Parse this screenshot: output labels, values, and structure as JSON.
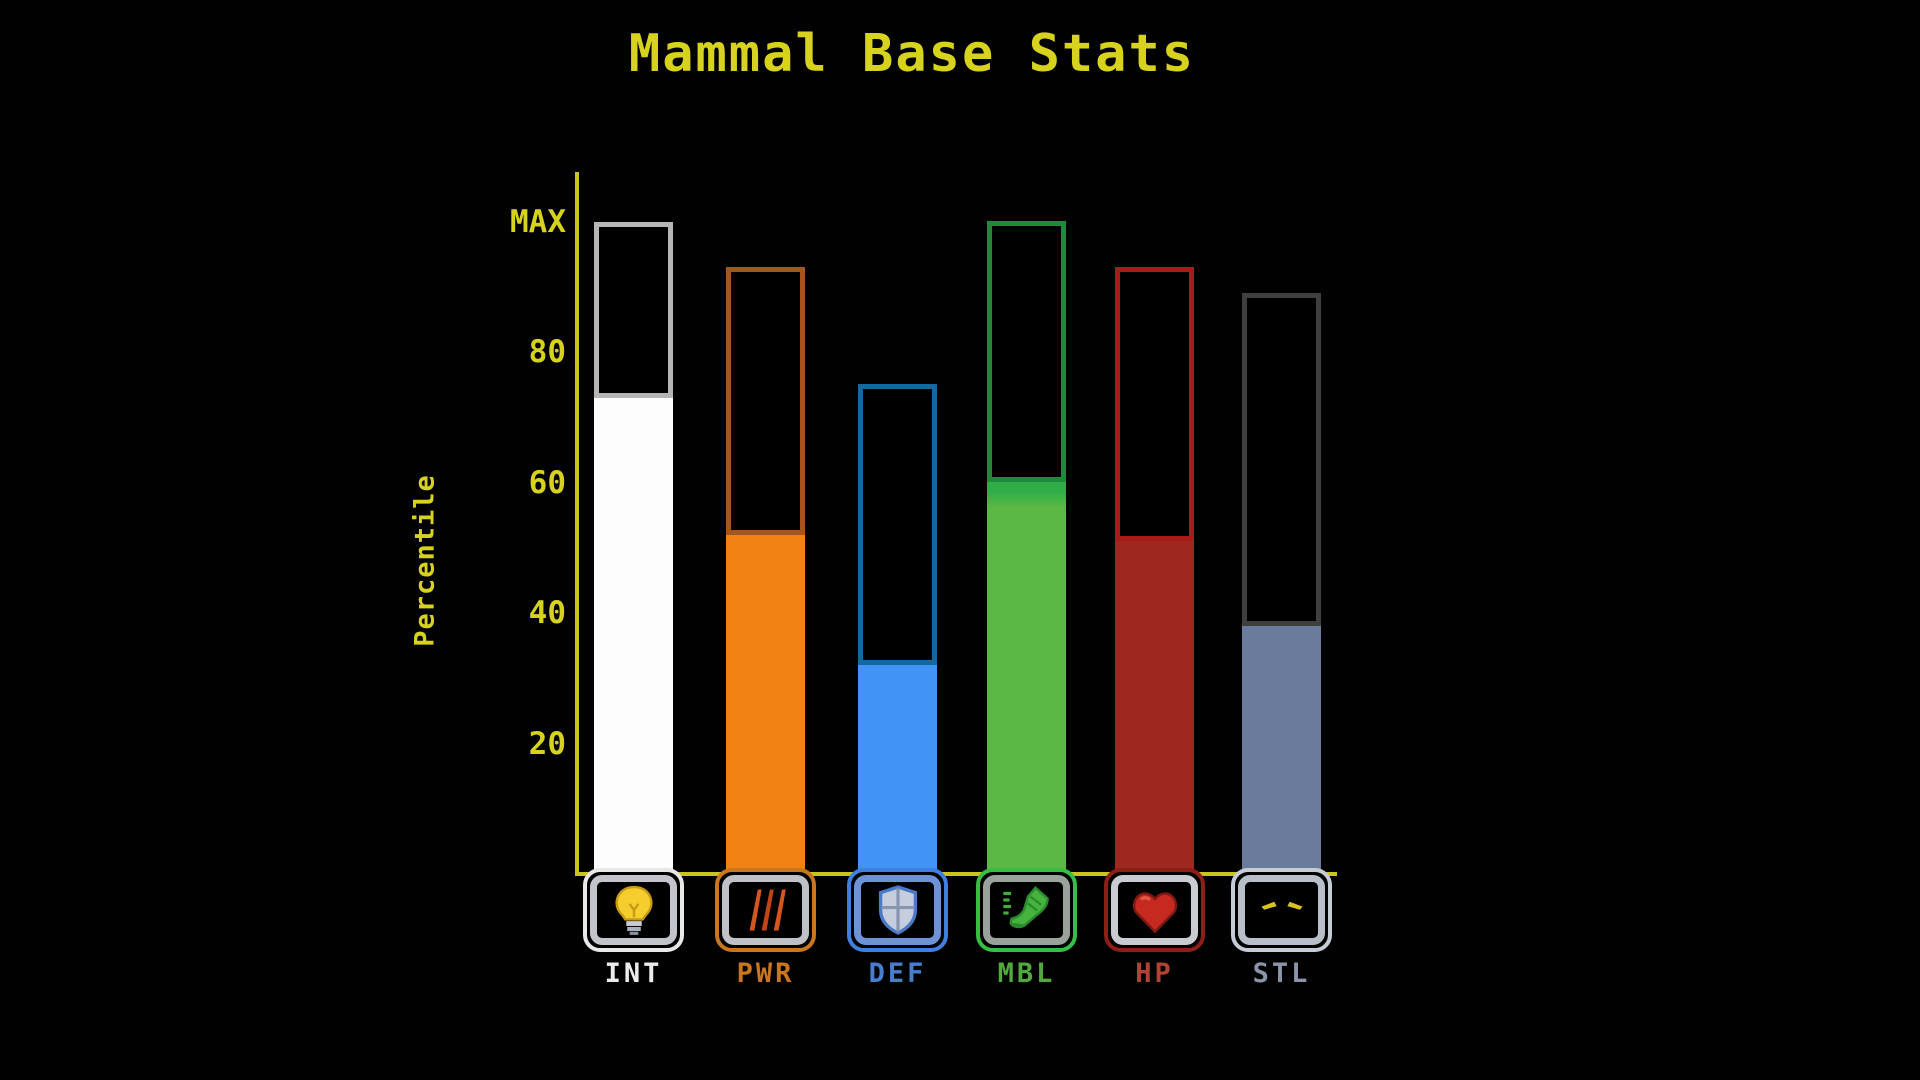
{
  "title": "Mammal Base Stats",
  "colors": {
    "title_yellow": "#d6d21d",
    "axis_yellow": "#c9c41e",
    "background": "#010101"
  },
  "chart_data": {
    "type": "bar",
    "title": "Mammal Base Stats",
    "ylabel": "Percentile",
    "ylim": [
      0,
      104
    ],
    "grid": false,
    "legend": "none",
    "yticks": [
      {
        "value": 20,
        "label": "20"
      },
      {
        "value": 40,
        "label": "40"
      },
      {
        "value": 60,
        "label": "60"
      },
      {
        "value": 80,
        "label": "80"
      },
      {
        "value": 100,
        "label": "MAX"
      }
    ],
    "categories": [
      "INT",
      "PWR",
      "DEF",
      "MBL",
      "HP",
      "STL"
    ],
    "series": [
      {
        "name": "current percentile",
        "values": [
          73,
          52,
          32,
          60,
          51,
          38
        ]
      },
      {
        "name": "max outline",
        "values": [
          100,
          93,
          75,
          100,
          93,
          89
        ]
      }
    ],
    "bars": [
      {
        "label": "INT",
        "value": 73,
        "max": 100,
        "fill_color": "#fdfdfd",
        "cap_color": "",
        "outline_color": "#b5b5b5",
        "rim_color": "#e8e8e8",
        "frame_color": "#c2c4ca",
        "label_color": "#ececec",
        "icon": "lightbulb-icon"
      },
      {
        "label": "PWR",
        "value": 52,
        "max": 93,
        "fill_color": "#f28214",
        "cap_color": "",
        "outline_color": "#a5561c",
        "rim_color": "#c8761f",
        "frame_color": "#bfc1c7",
        "label_color": "#c8761f",
        "icon": "claw-slashes-icon"
      },
      {
        "label": "DEF",
        "value": 32,
        "max": 75,
        "fill_color": "#4293f6",
        "cap_color": "",
        "outline_color": "#15689d",
        "rim_color": "#3e7fe0",
        "frame_color": "#6d93d6",
        "label_color": "#477fd0",
        "icon": "shield-icon"
      },
      {
        "label": "MBL",
        "value": 60,
        "max": 100,
        "fill_color": "#5cb845",
        "cap_color": "#2fae48",
        "outline_color": "#1f8b3a",
        "rim_color": "#35c045",
        "frame_color": "#9aa29c",
        "label_color": "#50a83e",
        "icon": "running-shoe-icon"
      },
      {
        "label": "HP",
        "value": 51,
        "max": 93,
        "fill_color": "#9e2820",
        "cap_color": "",
        "outline_color": "#a81b18",
        "rim_color": "#8e1f16",
        "frame_color": "#c9cbd0",
        "label_color": "#b04434",
        "icon": "heart-icon"
      },
      {
        "label": "STL",
        "value": 38,
        "max": 89,
        "fill_color": "#6a7b9b",
        "cap_color": "",
        "outline_color": "#3f3f3f",
        "rim_color": "#c6ccd6",
        "frame_color": "#b9bfc9",
        "label_color": "#8b94a8",
        "icon": "cat-eyes-icon"
      }
    ]
  }
}
